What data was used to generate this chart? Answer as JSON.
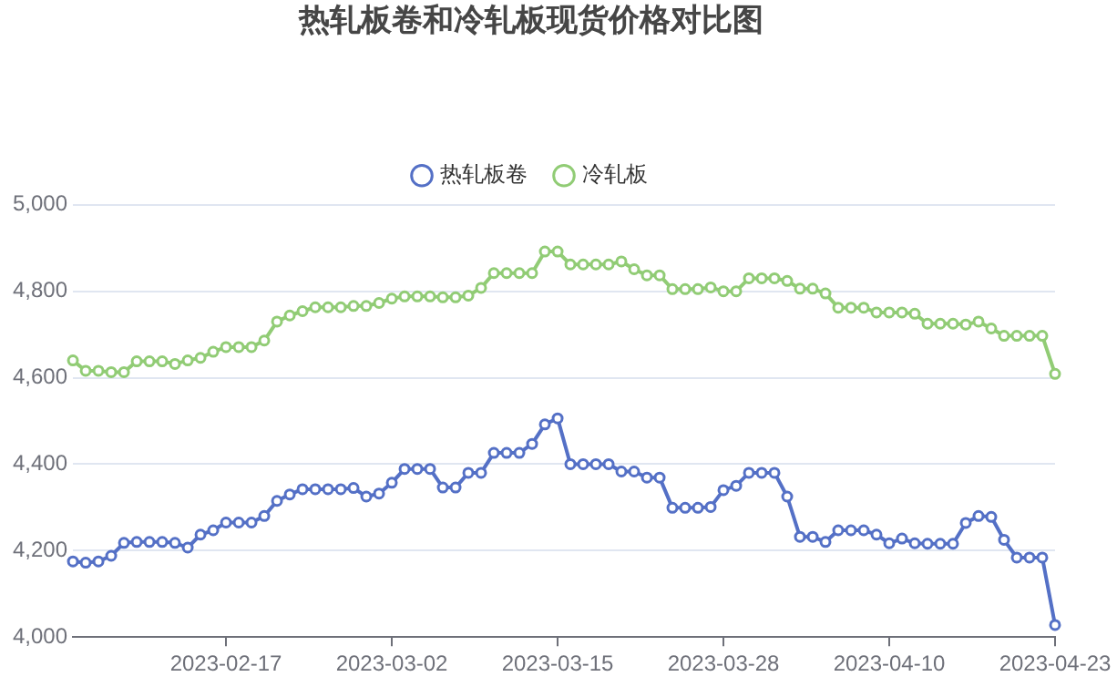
{
  "chart_data": {
    "type": "line",
    "title": "热轧板卷和冷轧板现货价格对比图",
    "categories": [
      null,
      null,
      null,
      null,
      null,
      null,
      null,
      null,
      null,
      null,
      null,
      null,
      "2023-02-17",
      null,
      null,
      null,
      null,
      null,
      null,
      null,
      null,
      null,
      null,
      null,
      null,
      "2023-03-02",
      null,
      null,
      null,
      null,
      null,
      null,
      null,
      null,
      null,
      null,
      null,
      null,
      "2023-03-15",
      null,
      null,
      null,
      null,
      null,
      null,
      null,
      null,
      null,
      null,
      null,
      null,
      "2023-03-28",
      null,
      null,
      null,
      null,
      null,
      null,
      null,
      null,
      null,
      null,
      null,
      null,
      "2023-04-10",
      null,
      null,
      null,
      null,
      null,
      null,
      null,
      null,
      null,
      null,
      null,
      null,
      "2023-04-23"
    ],
    "series": [
      {
        "name": "热轧板卷",
        "color": "#5470c6",
        "values": [
          4175,
          4172,
          4175,
          4188,
          4218,
          4220,
          4220,
          4220,
          4218,
          4207,
          4237,
          4247,
          4265,
          4265,
          4265,
          4280,
          4315,
          4330,
          4342,
          4342,
          4342,
          4342,
          4345,
          4325,
          4332,
          4357,
          4389,
          4389,
          4389,
          4346,
          4346,
          4380,
          4380,
          4426,
          4426,
          4426,
          4447,
          4492,
          4506,
          4400,
          4400,
          4400,
          4400,
          4383,
          4383,
          4369,
          4369,
          4299,
          4299,
          4299,
          4301,
          4340,
          4350,
          4380,
          4380,
          4380,
          4325,
          4232,
          4232,
          4220,
          4247,
          4247,
          4247,
          4237,
          4217,
          4228,
          4217,
          4216,
          4216,
          4216,
          4264,
          4280,
          4278,
          4225,
          4184,
          4184,
          4184,
          4028
        ]
      },
      {
        "name": "冷轧板",
        "color": "#91cc75",
        "values": [
          4640,
          4616,
          4616,
          4613,
          4613,
          4638,
          4638,
          4638,
          4632,
          4640,
          4646,
          4660,
          4671,
          4671,
          4671,
          4686,
          4730,
          4744,
          4754,
          4763,
          4763,
          4763,
          4766,
          4766,
          4773,
          4783,
          4788,
          4788,
          4788,
          4786,
          4786,
          4790,
          4808,
          4842,
          4842,
          4842,
          4842,
          4892,
          4892,
          4862,
          4862,
          4862,
          4862,
          4869,
          4851,
          4837,
          4837,
          4805,
          4805,
          4805,
          4809,
          4800,
          4800,
          4830,
          4830,
          4830,
          4824,
          4806,
          4806,
          4795,
          4762,
          4762,
          4762,
          4751,
          4751,
          4751,
          4748,
          4725,
          4725,
          4725,
          4723,
          4730,
          4714,
          4697,
          4697,
          4697,
          4697,
          4609
        ]
      }
    ],
    "ylim": [
      4000,
      5000
    ],
    "yticks": [
      {
        "value": 4000,
        "label": "4,000"
      },
      {
        "value": 4200,
        "label": "4,200"
      },
      {
        "value": 4400,
        "label": "4,400"
      },
      {
        "value": 4600,
        "label": "4,600"
      },
      {
        "value": 4800,
        "label": "4,800"
      },
      {
        "value": 5000,
        "label": "5,000"
      }
    ],
    "grid": "y",
    "legend": "top",
    "marker": "circle",
    "line_style": "solid"
  }
}
